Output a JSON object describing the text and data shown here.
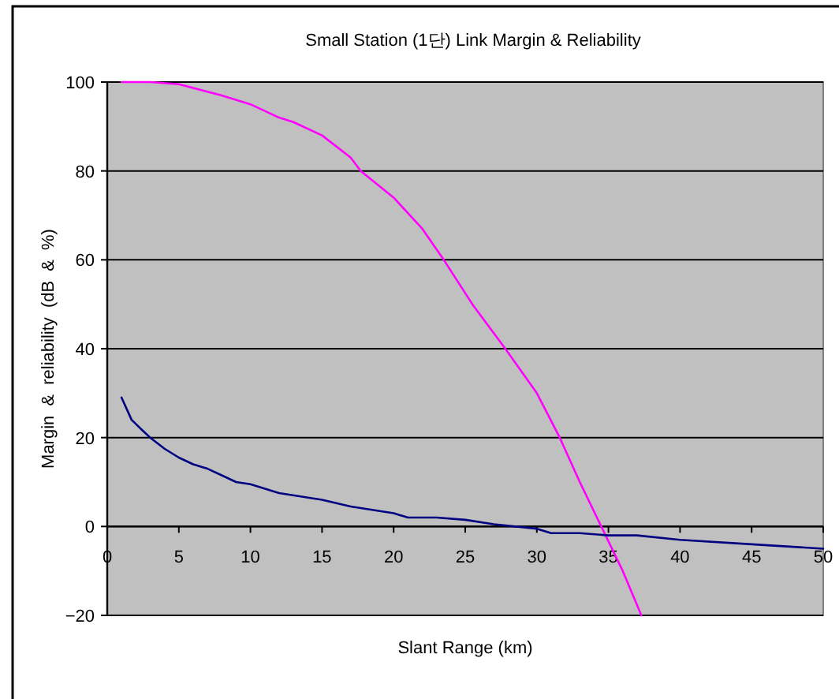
{
  "chart_data": {
    "type": "line",
    "title": "Small Station (1단) Link Margin & Reliability",
    "xlabel": "Slant Range (km)",
    "ylabel": "Margin & reliability (dB & %)",
    "xlim": [
      0,
      50
    ],
    "xticks": [
      0,
      5,
      10,
      15,
      20,
      25,
      30,
      35,
      40,
      45,
      50
    ],
    "ylim": [
      -20,
      100
    ],
    "yticks": [
      -20,
      0,
      20,
      40,
      60,
      80,
      100
    ],
    "grid": "y",
    "marker": "none",
    "line_style": "solid",
    "series": [
      {
        "color": "#ff00ff",
        "x": [
          1,
          3,
          5,
          8,
          10,
          12,
          13,
          15,
          17,
          17.7,
          20,
          22,
          23.5,
          25.5,
          27.8,
          30,
          31.6,
          33,
          34.5,
          36,
          37.3
        ],
        "values": [
          100,
          100,
          99.5,
          97,
          95,
          92,
          91,
          88,
          83,
          80,
          74,
          67,
          60,
          50,
          40,
          30,
          20,
          10,
          0,
          -10,
          -20
        ]
      },
      {
        "color": "#000080",
        "x": [
          1,
          1.7,
          2.5,
          3,
          4,
          5,
          6,
          7,
          8,
          9,
          10,
          12,
          15,
          17,
          20,
          21,
          23,
          25,
          27,
          30,
          31,
          33,
          35,
          37,
          40,
          45,
          50
        ],
        "values": [
          29,
          24,
          21.5,
          20,
          17.5,
          15.5,
          14,
          13,
          11.5,
          10,
          9.5,
          7.5,
          6,
          4.5,
          3,
          2,
          2,
          1.5,
          0.5,
          -0.5,
          -1.5,
          -1.5,
          -2,
          -2,
          -3,
          -4,
          -5
        ]
      }
    ]
  }
}
